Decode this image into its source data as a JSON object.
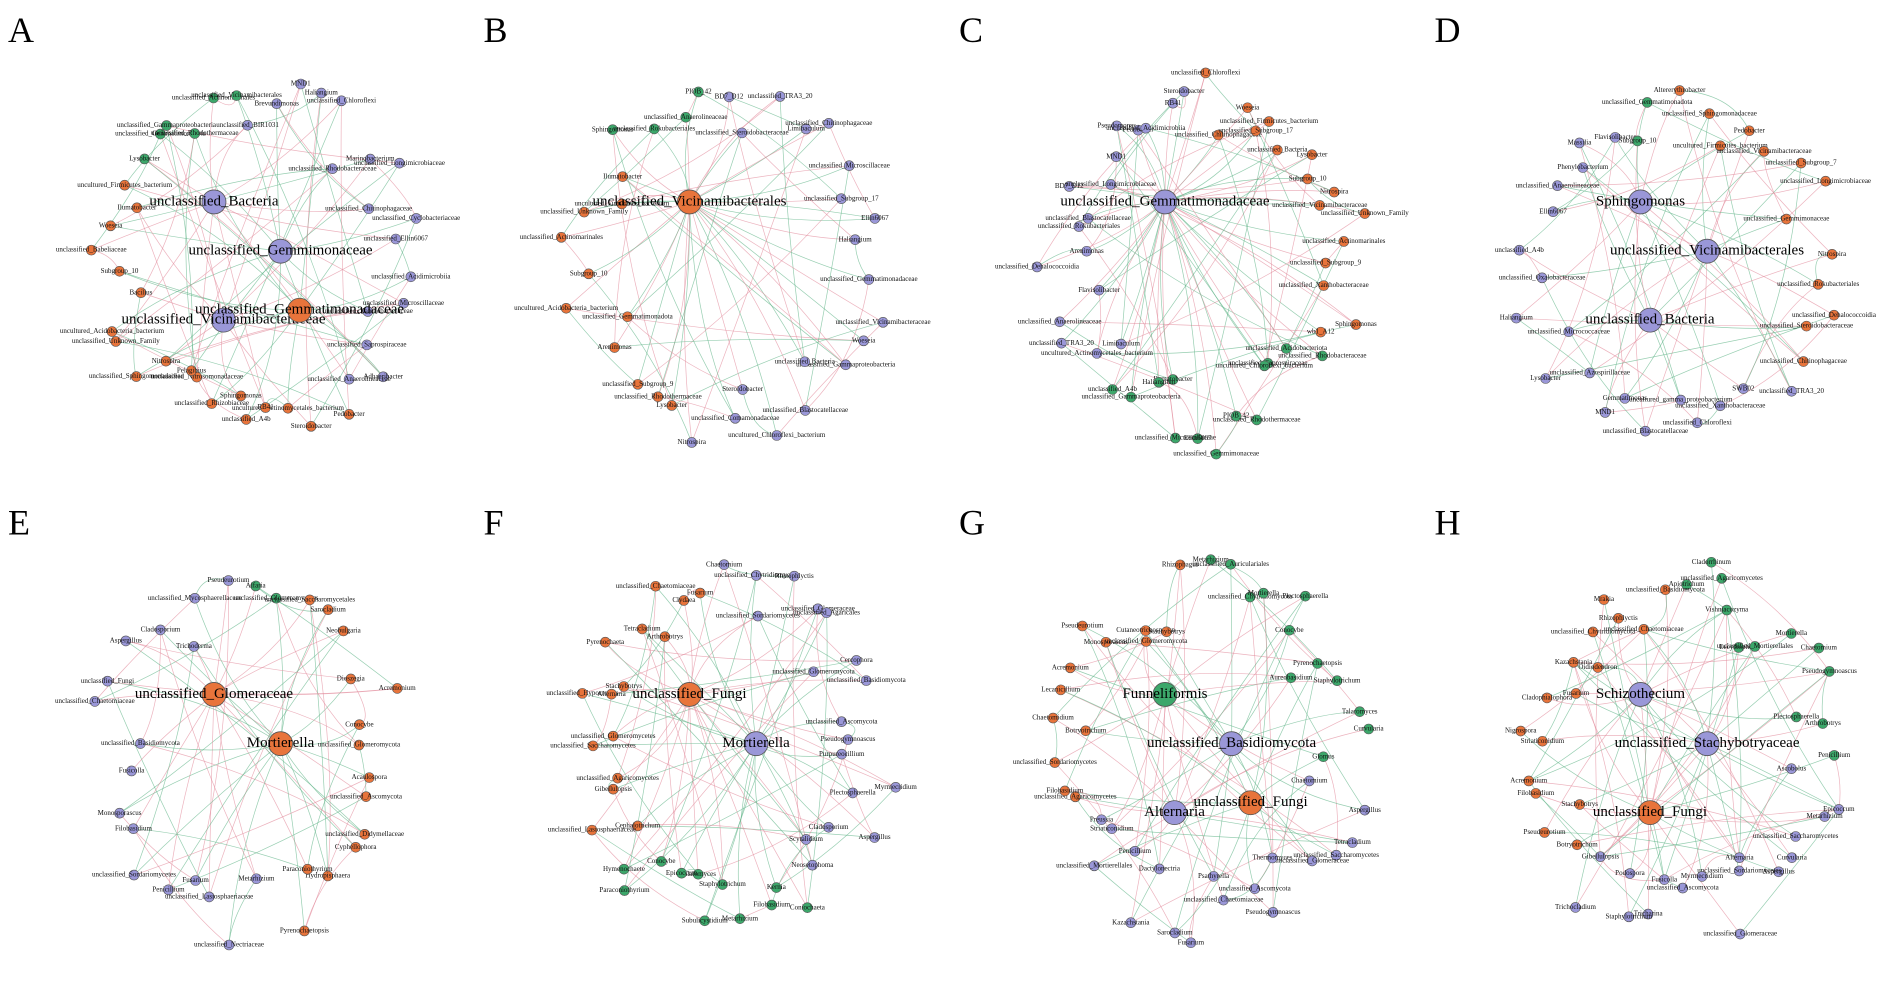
{
  "panels": [
    {
      "label": "A",
      "hubs": [
        {
          "name": "unclassified_Bacteria",
          "color": "#9a97d8"
        },
        {
          "name": "unclassified_Gemmimonaceae",
          "color": "#9a97d8"
        },
        {
          "name": "unclassified_Vicinamibacteraceae",
          "color": "#9a97d8"
        },
        {
          "name": "unclassified_Gemmatimonadaceae",
          "color": "#e8743b"
        }
      ],
      "groups": [
        {
          "color": "#9a97d8",
          "nodes": [
            "unclassified_BIR1031",
            "Brevundimonas",
            "MND1",
            "Haliangium",
            "unclassified_Chloroflexi",
            "unclassified_Rhodobacteraceae",
            "Marinobacterium",
            "unclassified_Longimicrobiaceae",
            "unclassified_Chitinophagaceae",
            "unclassified_Cyclobacteriaceae",
            "unclassified_Ellin6067",
            "unclassified_Acidimicrobiia",
            "unclassified_Microscillaceae",
            "unclassified_Xanthobacteraceae",
            "unclassified_Saprospiraceae",
            "Adhaeribacter",
            "unclassified_Anaerolineaceae"
          ]
        },
        {
          "color": "#e8743b",
          "nodes": [
            "Pedobacter",
            "Steroidobacter",
            "uncultured_Actinomycetales_bacterium",
            "RB41",
            "unclassified_A4b",
            "Sphingomonas",
            "unclassified_Rhizobiaceae",
            "unclassified_Nitrosomonadaceae",
            "Pelagibius",
            "Nitrospira",
            "unclassified_Sphingomonadaceae",
            "unclassified_Unknown_Family",
            "uncultured_Acidobacteria_bacterium",
            "Bacillus",
            "Subgroup_10",
            "unclassified_Babeliaceae",
            "Woeseia",
            "Ilumatobacter",
            "uncultured_Firmicutes_bacterium"
          ]
        },
        {
          "color": "#3ca76a",
          "nodes": [
            "Lysobacter",
            "unclassified_Gemmatimonadota",
            "unclassified_Gammaproteobacteria",
            "unclassified_Rhodothermaceae",
            "unclassified_Actinomarinales",
            "unclassified_Vicinamibacterales"
          ]
        }
      ]
    },
    {
      "label": "B",
      "hubs": [
        {
          "name": "unclassified_Vicinamibacterales",
          "color": "#e8743b"
        }
      ],
      "groups": [
        {
          "color": "#9a97d8",
          "nodes": [
            "BD7_D12",
            "unclassified_Steroidobacteraceae",
            "unclassified_TRA3_20",
            "Limibaculum",
            "unclassified_Chitinophagaceae",
            "unclassified_Microscillaceae",
            "unclassified_Subgroup_17",
            "Ellin6067",
            "Haliangium",
            "unclassified_Gemmatimonadaceae",
            "unclassified_Vicinamibacteraceae",
            "Woeseia",
            "unclassified_Gammaproteobacteria",
            "unclassified_Bacteria",
            "unclassified_Blastocatellaceae",
            "uncultured_Chloroflexi_bacterium",
            "Steroidobacter",
            "unclassified_Comamonadaceae",
            "Nitrospira"
          ]
        },
        {
          "color": "#e8743b",
          "nodes": [
            "Lysobacter",
            "unclassified_Rhodothermaceae",
            "unclassified_Subgroup_9",
            "Arenimonas",
            "unclassified_Gemmatimonadota",
            "uncultured_Acidobacteria_bacterium",
            "Subgroup_10",
            "unclassified_Actinomarinales",
            "unclassified_Unknown_Family",
            "uncultured_Firmicutes_bacterium",
            "Ilumatobacter"
          ]
        },
        {
          "color": "#3ca76a",
          "nodes": [
            "Sphingomonas",
            "unclassified_Rokubacteriales",
            "unclassified_Anaerolineaceae",
            "PIOB_42"
          ]
        }
      ]
    },
    {
      "label": "C",
      "hubs": [
        {
          "name": "unclassified_Gemmatimonadaceae",
          "color": "#9a97d8"
        }
      ],
      "groups": [
        {
          "color": "#e8743b",
          "nodes": [
            "unclassified_Chloroflexi",
            "unclassified_Chitinophagaceae",
            "Woeseia",
            "unclassified_Subgroup_17",
            "unclassified_Firmicutes_bacterium",
            "unclassified_Bacteria",
            "Lysobacter",
            "Subgroup_10",
            "Nitrospira",
            "unclassified_Vicinamibacteraceae",
            "unclassified_Unknown_Family",
            "unclassified_Actinomarinales",
            "unclassified_Subgroup_9",
            "unclassified_Xanthobacteraceae",
            "Sphingomonas",
            "wb1_A12"
          ]
        },
        {
          "color": "#3ca76a",
          "nodes": [
            "unclassified_Rhodobacteraceae",
            "unclassified_Acidobacteriota",
            "unclassified_Saprospiraceae",
            "uncultured_Chloroflexi_bacterium",
            "unclassified_Rhodothermaceae",
            "PIOB_42",
            "unclassified_Gemmimonaceae",
            "Ellin6067",
            "unclassified_Microscillaceae",
            "Ilumatobacter",
            "Haliangium",
            "unclassified_Gammaproteobacteria",
            "unclassified_A4b"
          ]
        },
        {
          "color": "#9a97d8",
          "nodes": [
            "Limibaculum",
            "uncultured_Actinomycetales_bacterium",
            "unclassified_TRA3_20",
            "unclassified_Anaerolineaceae",
            "Flavisolibacter",
            "unclassified_Dehalococcoidia",
            "Arenimonas",
            "unclassified_Rokubacteriales",
            "unclassified_Blastocatellaceae",
            "BD7_D12",
            "unclassified_Longimicrobiaceae",
            "MND1",
            "Pseudomonas",
            "Pedobacter",
            "unclassified_Acidimicrobiia",
            "RB41",
            "Steroidobacter"
          ]
        }
      ]
    },
    {
      "label": "D",
      "hubs": [
        {
          "name": "Sphingomonas",
          "color": "#9a97d8"
        },
        {
          "name": "unclassified_Vicinamibacterales",
          "color": "#9a97d8"
        },
        {
          "name": "unclassified_Bacteria",
          "color": "#9a97d8"
        }
      ],
      "groups": [
        {
          "color": "#e8743b",
          "nodes": [
            "Altererythrobacter",
            "unclassified_Sphingomonadaceae",
            "uncultured_Firmicutes_bacterium",
            "Pedobacter",
            "unclassified_Vicinamibacteraceae",
            "unclassified_Subgroup_7",
            "unclassified_Longimicrobiaceae",
            "unclassified_Gemmimonaceae",
            "Nitrospira",
            "unclassified_Rokubacteriales",
            "unclassified_Dehalococcoidia",
            "unclassified_Steroidobacteraceae",
            "unclassified_Chitinophagaceae"
          ]
        },
        {
          "color": "#9a97d8",
          "nodes": [
            "unclassified_TRA3_20",
            "SWB02",
            "unclassified_Xanthobacteraceae",
            "unclassified_Chloroflexi",
            "uncultured_gamma_proteobacterium",
            "unclassified_Blastocatellaceae",
            "Gemmatimonas",
            "MND1",
            "unclassified_Azospirillaceae",
            "Lysobacter",
            "unclassified_Micrococcaceae",
            "Haliangium",
            "unclassified_Oxalobacteraceae",
            "unclassified_A4b",
            "Ellin6067",
            "unclassified_Anaerolineaceae",
            "Phenylobacterium",
            "Massilia",
            "Flavisolibacter"
          ]
        },
        {
          "color": "#3ca76a",
          "nodes": [
            "Subgroup_10",
            "unclassified_Gemmatimonadota"
          ]
        }
      ]
    },
    {
      "label": "E",
      "hubs": [
        {
          "name": "unclassified_Glomeraceae",
          "color": "#e8743b"
        },
        {
          "name": "Mortierella",
          "color": "#e8743b"
        }
      ],
      "groups": [
        {
          "color": "#3ca76a",
          "nodes": [
            "Alfaria",
            "unclassified_Glomeromycetes"
          ]
        },
        {
          "color": "#e8743b",
          "nodes": [
            "unclassified_Saccharomycetales",
            "Sarocladium",
            "Neobulgaria",
            "Dioszegia",
            "Acremonium",
            "Conocybe",
            "unclassified_Glomeromycota",
            "Acaulospora",
            "unclassified_Ascomycota",
            "unclassified_Didymellaceae",
            "Cyphellophora",
            "Hydropisphaera",
            "Paraconiothyrium",
            "Pyrenochaetopsis"
          ]
        },
        {
          "color": "#9a97d8",
          "nodes": [
            "Metarhizium",
            "unclassified_Nectriaceae",
            "unclassified_Lasiosphaeriaceae",
            "Fusarium",
            "Penicillium",
            "unclassified_Sordariomycetes",
            "Filobasidium",
            "Monosporascus",
            "Fusicolla",
            "unclassified_Basidiomycota",
            "unclassified_Chaetomiaceae",
            "unclassified_Fungi",
            "Aspergillus",
            "Cladosporium",
            "Trichoderma",
            "unclassified_Mycosphaerellaceae",
            "Pseudeurotium"
          ]
        }
      ]
    },
    {
      "label": "F",
      "hubs": [
        {
          "name": "unclassified_Fungi",
          "color": "#e8743b"
        },
        {
          "name": "Mortierella",
          "color": "#9a97d8"
        }
      ],
      "groups": [
        {
          "color": "#9a97d8",
          "nodes": [
            "Chaetomium",
            "unclassified_Chytridiomycota",
            "unclassified_Sordariomycetes",
            "Rhizophlyctis",
            "unclassified_Glomeraceae",
            "unclassified_Agaricales",
            "unclassified_Glomeromycota",
            "Cercophora",
            "unclassified_Basidiomycota",
            "unclassified_Ascomycota",
            "Pseudogymnoascus",
            "Purpureocillium",
            "Myrmecridium",
            "Plectosphaerella",
            "Aspergillus",
            "Cladosporium",
            "Scytalidium",
            "Neosetophoma"
          ]
        },
        {
          "color": "#3ca76a",
          "nodes": [
            "Coniochaeta",
            "Kernia",
            "Filobasidium",
            "Metarhizium",
            "Staphylotrichum",
            "Subulicystidium",
            "Talaromyces",
            "Epicoccum",
            "Conocybe",
            "Paraconiothyrium",
            "Hymenochaete"
          ]
        },
        {
          "color": "#e8743b",
          "nodes": [
            "Cephalotrichum",
            "unclassified_Lasiosphaeriaceae",
            "Gibellulopsis",
            "unclassified_Agaricomycetes",
            "unclassified_Saccharomycetes",
            "unclassified_Glomeromycetes",
            "unclassified_Hypocreales",
            "Alternaria",
            "Stachybotrys",
            "Pyrenochaeta",
            "Tetracladium",
            "Arthrobotrys",
            "unclassified_Chaetomiaceae",
            "Clydaea",
            "Fusarium"
          ]
        }
      ]
    },
    {
      "label": "G",
      "hubs": [
        {
          "name": "Funneliformis",
          "color": "#3ca76a"
        },
        {
          "name": "unclassified_Basidiomycota",
          "color": "#9a97d8"
        },
        {
          "name": "Alternaria",
          "color": "#9a97d8"
        },
        {
          "name": "unclassified_Fungi",
          "color": "#e8743b"
        }
      ],
      "groups": [
        {
          "color": "#3ca76a",
          "nodes": [
            "Metarhizium",
            "unclassified_Auriculariales",
            "unclassified_Chytridiomycota",
            "Mortierella",
            "Plectosphaerella",
            "Conocybe",
            "Aureobasidium",
            "Pyrenochaetopsis",
            "Staphylotrichum",
            "Talaromyces",
            "Curvularia",
            "Glomus"
          ]
        },
        {
          "color": "#9a97d8",
          "nodes": [
            "Chaetomium",
            "Aspergillus",
            "Tetracladium",
            "unclassified_Saccharomycetes",
            "unclassified_Glomeraceae",
            "Thermomyces",
            "Pseudogymnoascus",
            "unclassified_Ascomycota",
            "unclassified_Chaetomiaceae",
            "Psathyrella",
            "Fusarium",
            "Sarocladium",
            "Dactylonectria",
            "Kazachstania",
            "Penicillium",
            "unclassified_Mortierellales",
            "Striaticonidium",
            "Preussia"
          ]
        },
        {
          "color": "#e8743b",
          "nodes": [
            "unclassified_Agaricomycetes",
            "Filobasidium",
            "unclassified_Sordariomycetes",
            "Botryotrichum",
            "Chaetomidium",
            "Lecanicillium",
            "Acremonium",
            "Pseudeurotium",
            "Monosporascus",
            "unclassified_Glomeromycota",
            "Cutaneotrichosporon",
            "Stachybotrys",
            "Rhizophagus"
          ]
        }
      ]
    },
    {
      "label": "H",
      "hubs": [
        {
          "name": "Schizothecium",
          "color": "#9a97d8"
        },
        {
          "name": "unclassified_Stachybotryaceae",
          "color": "#9a97d8"
        },
        {
          "name": "unclassified_Fungi",
          "color": "#e8743b"
        }
      ],
      "groups": [
        {
          "color": "#3ca76a",
          "nodes": [
            "Apiotrichum",
            "Cladorrhinum",
            "unclassified_Agaricomycetes",
            "Vishniacozyma",
            "Lecythophora",
            "unclassified_Mortierellales",
            "Mortierella",
            "Chaetomium",
            "Pseudogymnoascus",
            "Plectosphaerella",
            "Arthrobotrys",
            "Penicillium"
          ]
        },
        {
          "color": "#9a97d8",
          "nodes": [
            "Ascobolus",
            "Epicoccum",
            "Metarhizium",
            "unclassified_Saccharomycetes",
            "Curvularia",
            "Aspergillus",
            "Alternaria",
            "unclassified_Sordariomycetes",
            "unclassified_Glomeraceae",
            "Myrmecridium",
            "unclassified_Ascomycota",
            "Fusicolla",
            "Tricharina",
            "Staphylotrichum",
            "Podospora",
            "Trichocladium",
            "Gibellulopsis"
          ]
        },
        {
          "color": "#e8743b",
          "nodes": [
            "Botryotrichum",
            "Pseudeurotium",
            "Stachybotrys",
            "Filobasidium",
            "Acremonium",
            "Striaticonidium",
            "Nigrospora",
            "Cladophialophora",
            "Fusarium",
            "Kazachstania",
            "Oidiodendron",
            "unclassified_Chytridiomycota",
            "Mrakia",
            "Rhizophlyctis",
            "unclassified_Chaetomiaceae",
            "unclassified_Basidiomycota"
          ]
        }
      ]
    }
  ]
}
